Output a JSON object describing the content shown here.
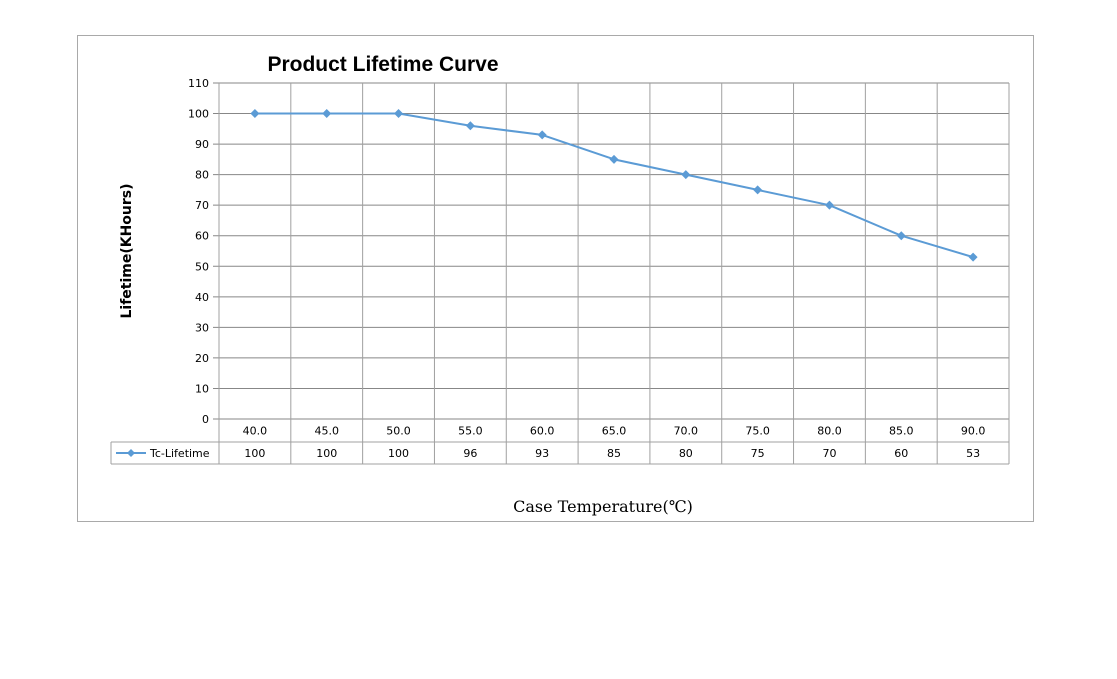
{
  "chart_data": {
    "type": "line",
    "title": "Product Lifetime Curve",
    "xlabel": "Case Temperature(℃)",
    "ylabel": "Lifetime(KHours)",
    "categories": [
      "40.0",
      "45.0",
      "50.0",
      "55.0",
      "60.0",
      "65.0",
      "70.0",
      "75.0",
      "80.0",
      "85.0",
      "90.0"
    ],
    "series": [
      {
        "name": "Tc-Lifetime",
        "values": [
          100,
          100,
          100,
          96,
          93,
          85,
          80,
          75,
          70,
          60,
          53
        ],
        "labels": [
          "100",
          "100",
          "100",
          "96",
          "93",
          "85",
          "80",
          "75",
          "70",
          "60",
          "53"
        ],
        "color": "#5b9bd5",
        "marker": "diamond"
      }
    ],
    "ylim": [
      0,
      110
    ],
    "yticks": [
      "0",
      "10",
      "20",
      "30",
      "40",
      "50",
      "60",
      "70",
      "80",
      "90",
      "100",
      "110"
    ],
    "grid": true,
    "data_table": true,
    "legend": "data-table-left"
  }
}
